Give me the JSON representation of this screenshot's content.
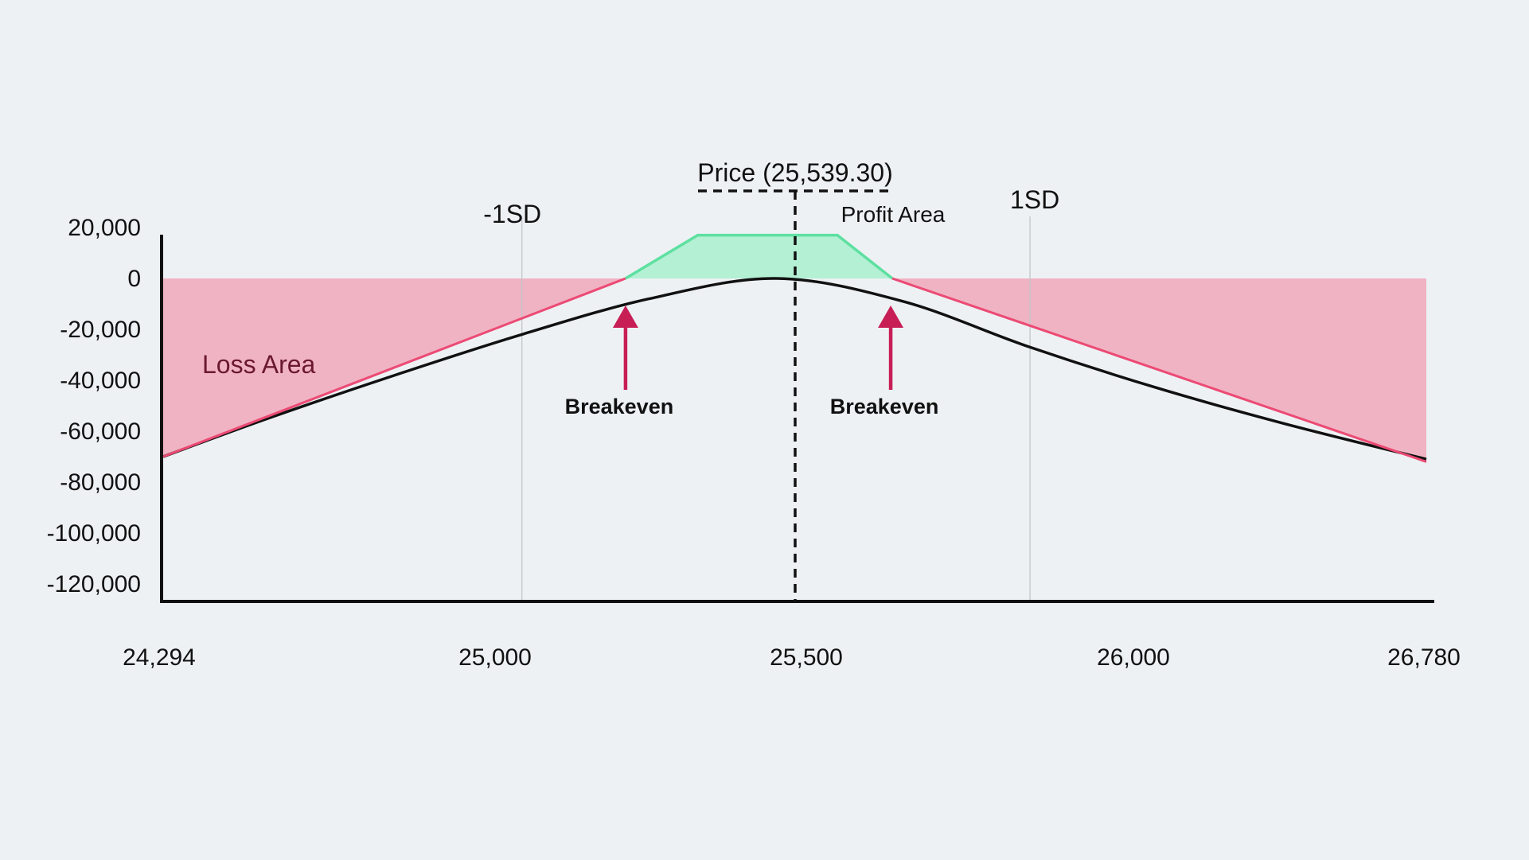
{
  "chart_data": {
    "type": "line",
    "title": "",
    "xlabel": "",
    "ylabel": "",
    "x_ticks": [
      "24,294",
      "25,000",
      "25,500",
      "26,000",
      "26,780"
    ],
    "x_tick_values": [
      24294,
      25000,
      25500,
      26000,
      26780
    ],
    "y_ticks": [
      "20,000",
      "0",
      "-20,000",
      "-40,000",
      "-60,000",
      "-80,000",
      "-100,000",
      "-120,000"
    ],
    "y_tick_values": [
      20000,
      0,
      -20000,
      -40000,
      -60000,
      -80000,
      -100000,
      -120000
    ],
    "xlim": [
      24294,
      26780
    ],
    "ylim": [
      -120000,
      20000
    ],
    "series": [
      {
        "role": "expiry payoff",
        "color": "#ec4a74",
        "profit_color": "#5ee0a0",
        "x": [
          24294,
          25204,
          25346,
          25621,
          25729,
          26780
        ],
        "y": [
          -70000,
          0,
          17000,
          17000,
          0,
          -72000
        ]
      },
      {
        "role": "current payoff",
        "color": "#111111",
        "x": [
          24294,
          24500,
          24750,
          25000,
          25250,
          25500,
          25750,
          26000,
          26250,
          26500,
          26780
        ],
        "y": [
          -70000,
          -55000,
          -38000,
          -22000,
          -8000,
          0,
          -9000,
          -27000,
          -43000,
          -57000,
          -71000
        ]
      }
    ],
    "shaded_regions": [
      {
        "label": "Loss Area",
        "color": "#f0b3c3"
      },
      {
        "label": "Profit Area",
        "color": "#b3f0d4"
      }
    ],
    "vertical_lines": [
      {
        "label": "-1SD",
        "x": 25000
      },
      {
        "label": "1SD",
        "x": 26000
      },
      {
        "label": "Price (25,539.30)",
        "x": 25539.3,
        "dashed": true
      }
    ],
    "annotations": [
      {
        "text": "Breakeven",
        "x": 25204
      },
      {
        "text": "Breakeven",
        "x": 25729
      }
    ],
    "grid": false,
    "legend": "none"
  }
}
